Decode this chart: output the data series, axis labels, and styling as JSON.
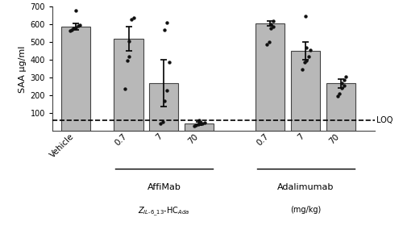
{
  "bar_positions": [
    0,
    1.5,
    2.5,
    3.5,
    5.5,
    6.5,
    7.5
  ],
  "bar_heights": [
    590,
    520,
    270,
    42,
    607,
    452,
    268
  ],
  "bar_errors": [
    18,
    70,
    130,
    8,
    15,
    48,
    25
  ],
  "bar_color": "#b8b8b8",
  "bar_edge_color": "#444444",
  "bar_width": 0.82,
  "ylim": [
    0,
    700
  ],
  "yticks": [
    100,
    200,
    300,
    400,
    500,
    600,
    700
  ],
  "ylabel": "SAA μg/ml",
  "loq_value": 62,
  "loq_label": "LOQ",
  "tick_labels": [
    "Vehicle",
    "0.7",
    "7",
    "70",
    "0.7",
    "7",
    "70"
  ],
  "group1_label_main": "AffiMab",
  "group1_label_sub": "$Z_{IL\\text{-}6\\_13}$-HC$_{Ada}$",
  "group1_label_units": "(mg/kg)",
  "group2_label_main": "Adalimumab",
  "group2_label_units": "(mg/kg)",
  "dot_data": [
    [
      565,
      572,
      578,
      585,
      592,
      598,
      678
    ],
    [
      238,
      398,
      418,
      508,
      628,
      638
    ],
    [
      44,
      54,
      172,
      228,
      388,
      568,
      612
    ],
    [
      30,
      34,
      38,
      41,
      44,
      49,
      54,
      63
    ],
    [
      488,
      503,
      578,
      588,
      603,
      618
    ],
    [
      348,
      388,
      398,
      418,
      458,
      468,
      648
    ],
    [
      198,
      213,
      243,
      258,
      268,
      288,
      308
    ]
  ],
  "dot_color": "#111111",
  "dot_size": 10,
  "background_color": "#ffffff",
  "spine_color": "#444444",
  "xlim": [
    -0.65,
    8.45
  ]
}
